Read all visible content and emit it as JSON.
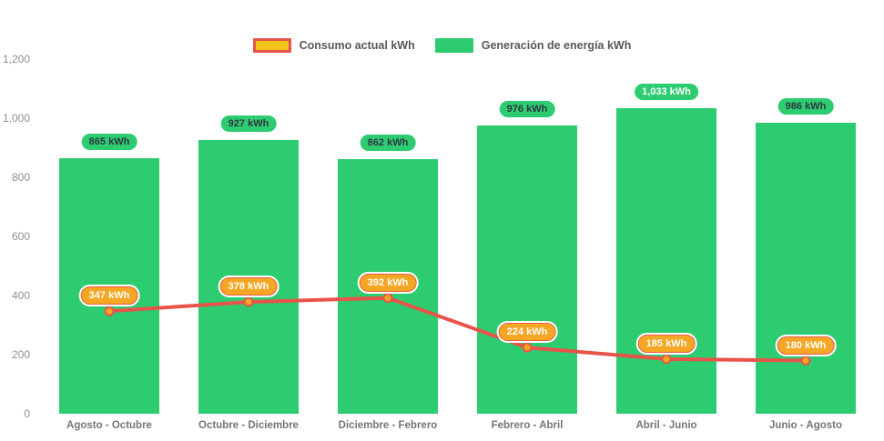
{
  "legend": {
    "items": [
      {
        "label": "Consumo actual kWh",
        "swatch_fill": "#F0C419",
        "swatch_border": "#E8534A"
      },
      {
        "label": "Generación de energía kWh",
        "swatch_fill": "#2ECC71",
        "swatch_border": "#2ECC71"
      }
    ]
  },
  "colors": {
    "bar": "#2ECC71",
    "line": "#E8534A",
    "point_fill": "#F5A623",
    "bar_pill_bg": "#2ECC71",
    "bar_pill_text": "#2F3640",
    "bar_pill_text_highlight": "#FFFFFF",
    "line_pill_bg": "#F5A623",
    "axis_text": "#8F8F8F",
    "category_text": "#757575"
  },
  "chart_data": {
    "type": "bar",
    "subtype": "bar-with-line-overlay",
    "categories": [
      "Agosto - Octubre",
      "Octubre - Diciembre",
      "Diciembre - Febrero",
      "Febrero - Abril",
      "Abril - Junio",
      "Junio - Agosto"
    ],
    "series": [
      {
        "name": "Generación de energía kWh",
        "type": "bar",
        "values": [
          865,
          927,
          862,
          976,
          1033,
          986
        ],
        "labels": [
          "865 kWh",
          "927 kWh",
          "862 kWh",
          "976 kWh",
          "1,033 kWh",
          "986 kWh"
        ],
        "highlight_index": 4
      },
      {
        "name": "Consumo actual kWh",
        "type": "line",
        "values": [
          347,
          378,
          392,
          224,
          185,
          180
        ],
        "labels": [
          "347 kWh",
          "378 kWh",
          "392 kWh",
          "224 kWh",
          "185 kWh",
          "180 kWh"
        ]
      }
    ],
    "y_ticks": [
      "0",
      "200",
      "400",
      "600",
      "800",
      "1,000",
      "1,200"
    ],
    "y_tick_values": [
      0,
      200,
      400,
      600,
      800,
      1000,
      1200
    ],
    "ylim": [
      0,
      1200
    ],
    "xlabel": "",
    "ylabel": "",
    "title": "",
    "grid": false,
    "legend_position": "top"
  }
}
